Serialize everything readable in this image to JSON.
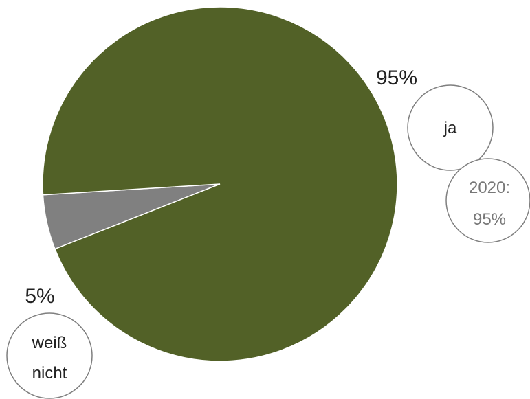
{
  "chart_data": {
    "type": "pie",
    "slices": [
      {
        "label": "ja",
        "value": 95,
        "percent_label": "95%",
        "color": "#526127",
        "previous_label": [
          "2020:",
          "95%"
        ]
      },
      {
        "label": "weiß nicht",
        "label_lines": [
          "weiß",
          "nicht"
        ],
        "value": 5,
        "percent_label": "5%",
        "color": "#808080"
      }
    ]
  }
}
